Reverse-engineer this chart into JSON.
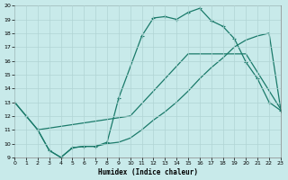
{
  "xlabel": "Humidex (Indice chaleur)",
  "bg_color": "#c8eaea",
  "grid_color": "#b0d4d4",
  "line_color": "#1a7a6a",
  "xlim": [
    0,
    23
  ],
  "ylim": [
    9,
    20
  ],
  "xticks": [
    0,
    1,
    2,
    3,
    4,
    5,
    6,
    7,
    8,
    9,
    10,
    11,
    12,
    13,
    14,
    15,
    16,
    17,
    18,
    19,
    20,
    21,
    22,
    23
  ],
  "yticks": [
    9,
    10,
    11,
    12,
    13,
    14,
    15,
    16,
    17,
    18,
    19,
    20
  ],
  "line1_x": [
    0,
    1,
    2,
    3,
    4,
    5,
    6,
    7,
    8,
    9,
    11,
    12,
    13,
    14,
    15,
    16,
    17,
    18,
    19,
    20,
    21,
    22,
    23
  ],
  "line1_y": [
    13,
    12,
    11,
    9.5,
    9.0,
    9.7,
    9.8,
    9.8,
    10.1,
    13.3,
    17.8,
    19.1,
    19.2,
    19.0,
    19.5,
    19.8,
    18.9,
    18.5,
    17.6,
    15.9,
    14.7,
    13.0,
    12.4
  ],
  "line2_x": [
    0,
    2,
    10,
    15,
    20,
    23
  ],
  "line2_y": [
    13,
    11,
    12,
    16.5,
    16.5,
    12.5
  ],
  "line3_x": [
    2,
    3,
    4,
    5,
    6,
    7,
    8,
    9,
    10,
    11,
    12,
    13,
    14,
    15,
    16,
    17,
    18,
    19,
    20,
    21,
    22,
    23
  ],
  "line3_y": [
    11,
    9.5,
    9.0,
    9.7,
    9.8,
    9.8,
    10.0,
    10.1,
    10.4,
    11.0,
    11.7,
    12.3,
    13.0,
    13.8,
    14.7,
    15.5,
    16.2,
    17.0,
    17.5,
    17.8,
    18.0,
    12.5
  ]
}
